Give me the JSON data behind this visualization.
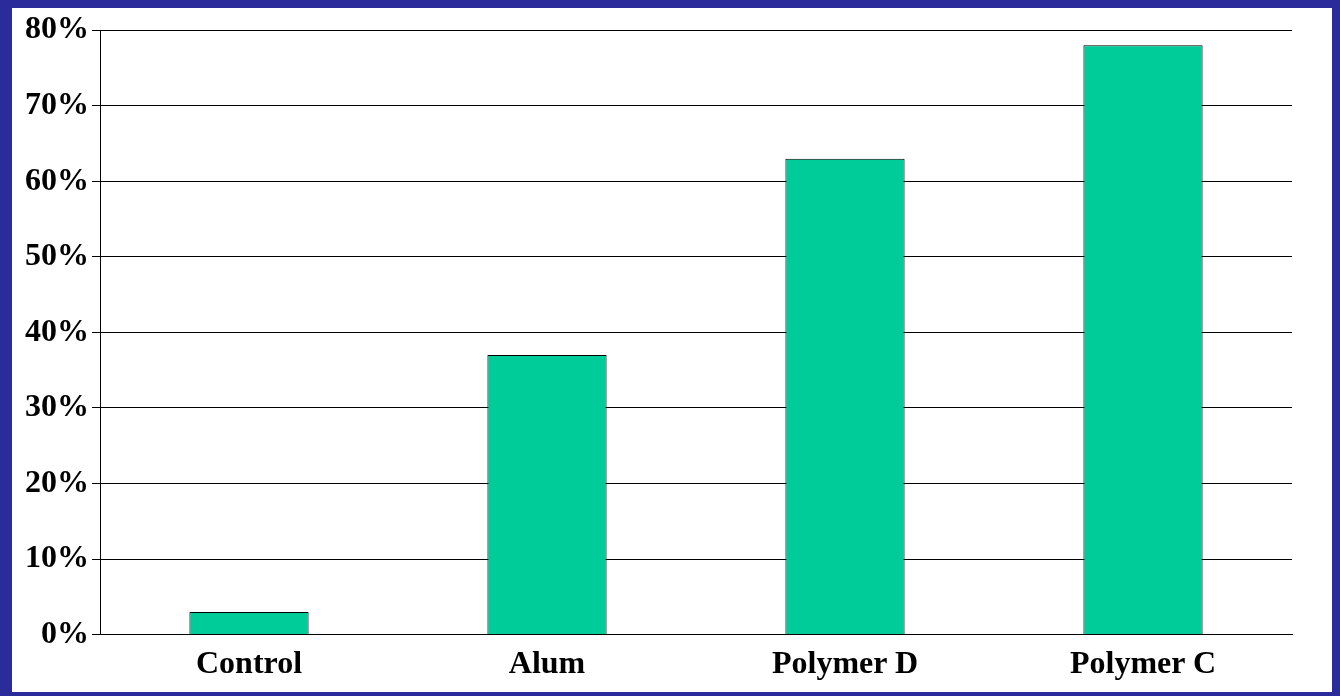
{
  "chart_data": {
    "type": "bar",
    "categories": [
      "Control",
      "Alum",
      "Polymer D",
      "Polymer C"
    ],
    "values": [
      3,
      37,
      63,
      78
    ],
    "color": "#00cc99",
    "ylim": [
      0,
      80
    ],
    "yticks": [
      {
        "value": 0,
        "label": "0%"
      },
      {
        "value": 10,
        "label": "10%"
      },
      {
        "value": 20,
        "label": "20%"
      },
      {
        "value": 30,
        "label": "30%"
      },
      {
        "value": 40,
        "label": "40%"
      },
      {
        "value": 50,
        "label": "50%"
      },
      {
        "value": 60,
        "label": "60%"
      },
      {
        "value": 70,
        "label": "70%"
      },
      {
        "value": 80,
        "label": "80%"
      }
    ],
    "grid": "y"
  }
}
